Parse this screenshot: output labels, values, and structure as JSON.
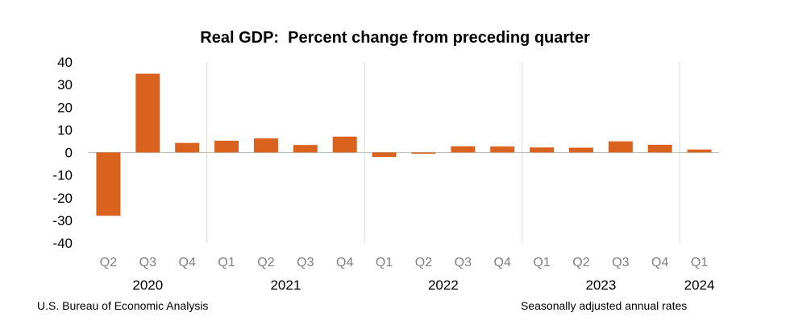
{
  "chart_data": {
    "type": "bar",
    "title": "Real GDP:  Percent change from preceding quarter",
    "categories": [
      "Q2",
      "Q3",
      "Q4",
      "Q1",
      "Q2",
      "Q3",
      "Q4",
      "Q1",
      "Q2",
      "Q3",
      "Q4",
      "Q1",
      "Q2",
      "Q3",
      "Q4",
      "Q1"
    ],
    "year_groups": [
      {
        "label": "2020",
        "count": 3
      },
      {
        "label": "2021",
        "count": 4
      },
      {
        "label": "2022",
        "count": 4
      },
      {
        "label": "2023",
        "count": 4
      },
      {
        "label": "2024",
        "count": 1
      }
    ],
    "values": [
      -28.0,
      34.8,
      4.2,
      5.2,
      6.2,
      3.3,
      7.0,
      -2.0,
      -0.6,
      2.7,
      2.6,
      2.2,
      2.1,
      4.9,
      3.4,
      1.3
    ],
    "ylim": [
      -40,
      40
    ],
    "yticks": [
      40,
      30,
      20,
      10,
      0,
      -10,
      -20,
      -30,
      -40
    ],
    "bar_color": "#D9621F",
    "grid": false,
    "xlabel": "",
    "ylabel": ""
  },
  "footer": {
    "source": "U.S. Bureau of Economic Analysis",
    "note": "Seasonally adjusted annual rates"
  },
  "colors": {
    "tick_label": "#7f7f7f",
    "separator": "#d9d9d9",
    "axis": "#bfbfbf"
  }
}
